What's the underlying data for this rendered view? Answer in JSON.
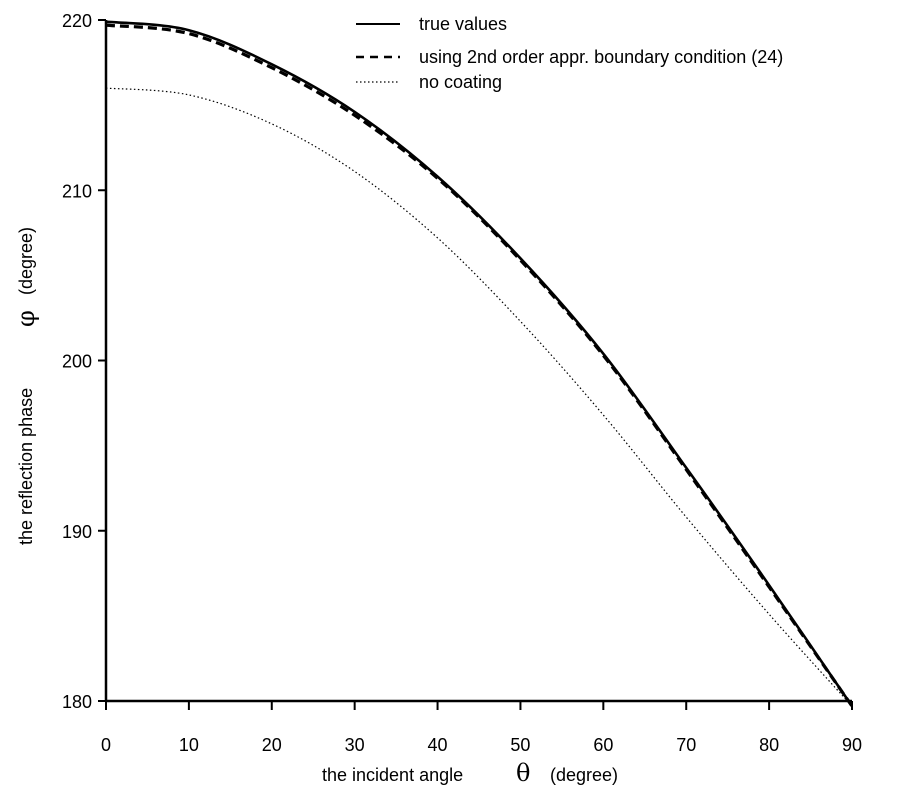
{
  "chart_data": {
    "type": "line",
    "xlabel": "the incident angle",
    "xsymbol": "θ",
    "xunit": "(degree)",
    "ylabel": "the reflection phase",
    "ysymbol": "φ",
    "yunit": "(degree)",
    "xlim": [
      0,
      90
    ],
    "ylim": [
      180,
      220
    ],
    "xticks": [
      "0",
      "10",
      "20",
      "30",
      "40",
      "50",
      "60",
      "70",
      "80",
      "90"
    ],
    "yticks": [
      "180",
      "190",
      "200",
      "210",
      "220"
    ],
    "grid": false,
    "legend_position": "top-right",
    "x": [
      0,
      10,
      20,
      30,
      40,
      50,
      60,
      70,
      80,
      90
    ],
    "series": [
      {
        "name": "true values",
        "style": "solid",
        "color": "#000000",
        "values": [
          219.9,
          219.4,
          217.4,
          214.6,
          210.8,
          206.0,
          200.4,
          193.7,
          186.8,
          179.7
        ]
      },
      {
        "name": "using  2nd order appr. boundary condition (24)",
        "style": "dashed",
        "color": "#000000",
        "values": [
          219.7,
          219.2,
          217.2,
          214.4,
          210.7,
          205.9,
          200.3,
          193.6,
          186.7,
          179.7
        ]
      },
      {
        "name": "no coating",
        "style": "dotted",
        "color": "#000000",
        "values": [
          216.0,
          215.6,
          213.9,
          211.1,
          207.2,
          202.3,
          196.8,
          190.8,
          185.1,
          179.7
        ]
      }
    ]
  }
}
